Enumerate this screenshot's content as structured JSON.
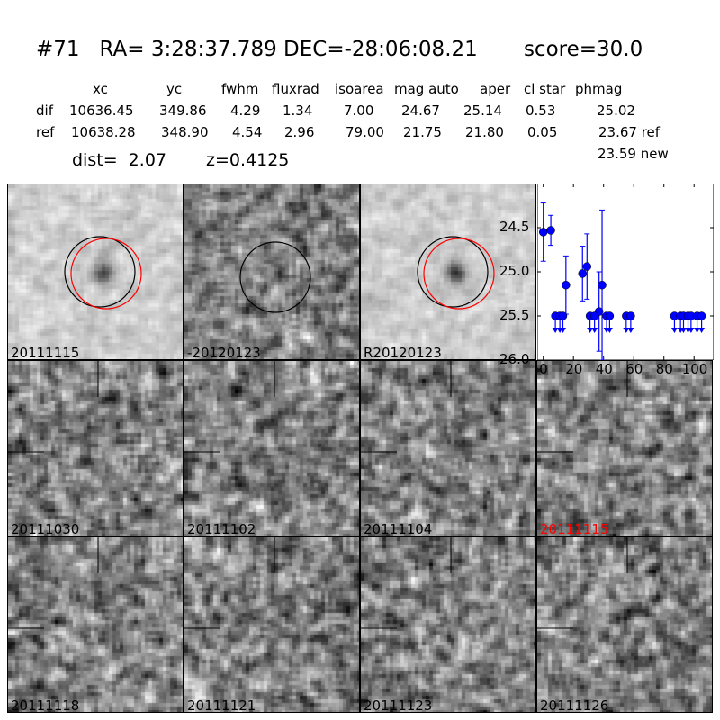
{
  "title": "#71   RA= 3:28:37.789 DEC=-28:06:08.21       score=30.0",
  "table": {
    "headers": [
      "xc",
      "yc",
      "fwhm",
      "fluxrad",
      "isoarea",
      "mag auto",
      "aper",
      "cl star",
      "phmag"
    ],
    "rows": [
      {
        "label": "dif",
        "values": [
          "10636.45",
          "349.86",
          "4.29",
          "1.34",
          "7.00",
          "24.67",
          "25.14",
          "0.53",
          "25.02"
        ]
      },
      {
        "label": "ref",
        "values": [
          "10638.28",
          "348.90",
          "4.54",
          "2.96",
          "79.00",
          "21.75",
          "21.80",
          "0.05",
          "23.67 ref"
        ]
      }
    ],
    "phmag_new": "23.59 new"
  },
  "dist": "dist=  2.07",
  "z": "z=0.4125",
  "stamps_top": [
    {
      "label": "20111115",
      "circles": [
        "black",
        "red"
      ]
    },
    {
      "label": "-20120123",
      "circles": [
        "black"
      ]
    },
    {
      "label": "R20120123",
      "circles": [
        "black",
        "red"
      ]
    }
  ],
  "stamps": [
    {
      "label": "20111030",
      "color": "#000000"
    },
    {
      "label": "20111102",
      "color": "#000000"
    },
    {
      "label": "20111104",
      "color": "#000000"
    },
    {
      "label": "20111115",
      "color": "#ff0000"
    },
    {
      "label": "20111118",
      "color": "#000000"
    },
    {
      "label": "20111121",
      "color": "#000000"
    },
    {
      "label": "20111123",
      "color": "#000000"
    },
    {
      "label": "20111126",
      "color": "#000000"
    }
  ],
  "chart_data": {
    "type": "scatter",
    "xlim": [
      -4,
      113
    ],
    "ylim": [
      26.0,
      24.0
    ],
    "y_inverted": true,
    "xticks": [
      "0",
      "20",
      "40",
      "60",
      "80",
      "100"
    ],
    "yticks": [
      "24.5",
      "25.0",
      "25.5",
      "26.0"
    ],
    "color": "#0000ff",
    "detections": [
      {
        "x": 0,
        "y": 24.55,
        "err": 0.33
      },
      {
        "x": 5,
        "y": 24.53,
        "err": 0.17
      },
      {
        "x": 15,
        "y": 25.15,
        "err": 0.33
      },
      {
        "x": 26,
        "y": 25.02,
        "err": 0.31
      },
      {
        "x": 29,
        "y": 24.94,
        "err": 0.37
      },
      {
        "x": 37,
        "y": 25.45,
        "err": 0.45
      },
      {
        "x": 39,
        "y": 25.15,
        "err": 0.85
      }
    ],
    "upper_limits": [
      {
        "x": 8,
        "y": 25.5
      },
      {
        "x": 11,
        "y": 25.5
      },
      {
        "x": 13,
        "y": 25.5
      },
      {
        "x": 31,
        "y": 25.5
      },
      {
        "x": 34,
        "y": 25.5
      },
      {
        "x": 42,
        "y": 25.5
      },
      {
        "x": 44,
        "y": 25.5
      },
      {
        "x": 55,
        "y": 25.5
      },
      {
        "x": 58,
        "y": 25.5
      },
      {
        "x": 87,
        "y": 25.5
      },
      {
        "x": 91,
        "y": 25.5
      },
      {
        "x": 93,
        "y": 25.5
      },
      {
        "x": 96,
        "y": 25.5
      },
      {
        "x": 98,
        "y": 25.5
      },
      {
        "x": 102,
        "y": 25.5
      },
      {
        "x": 105,
        "y": 25.5
      }
    ]
  }
}
